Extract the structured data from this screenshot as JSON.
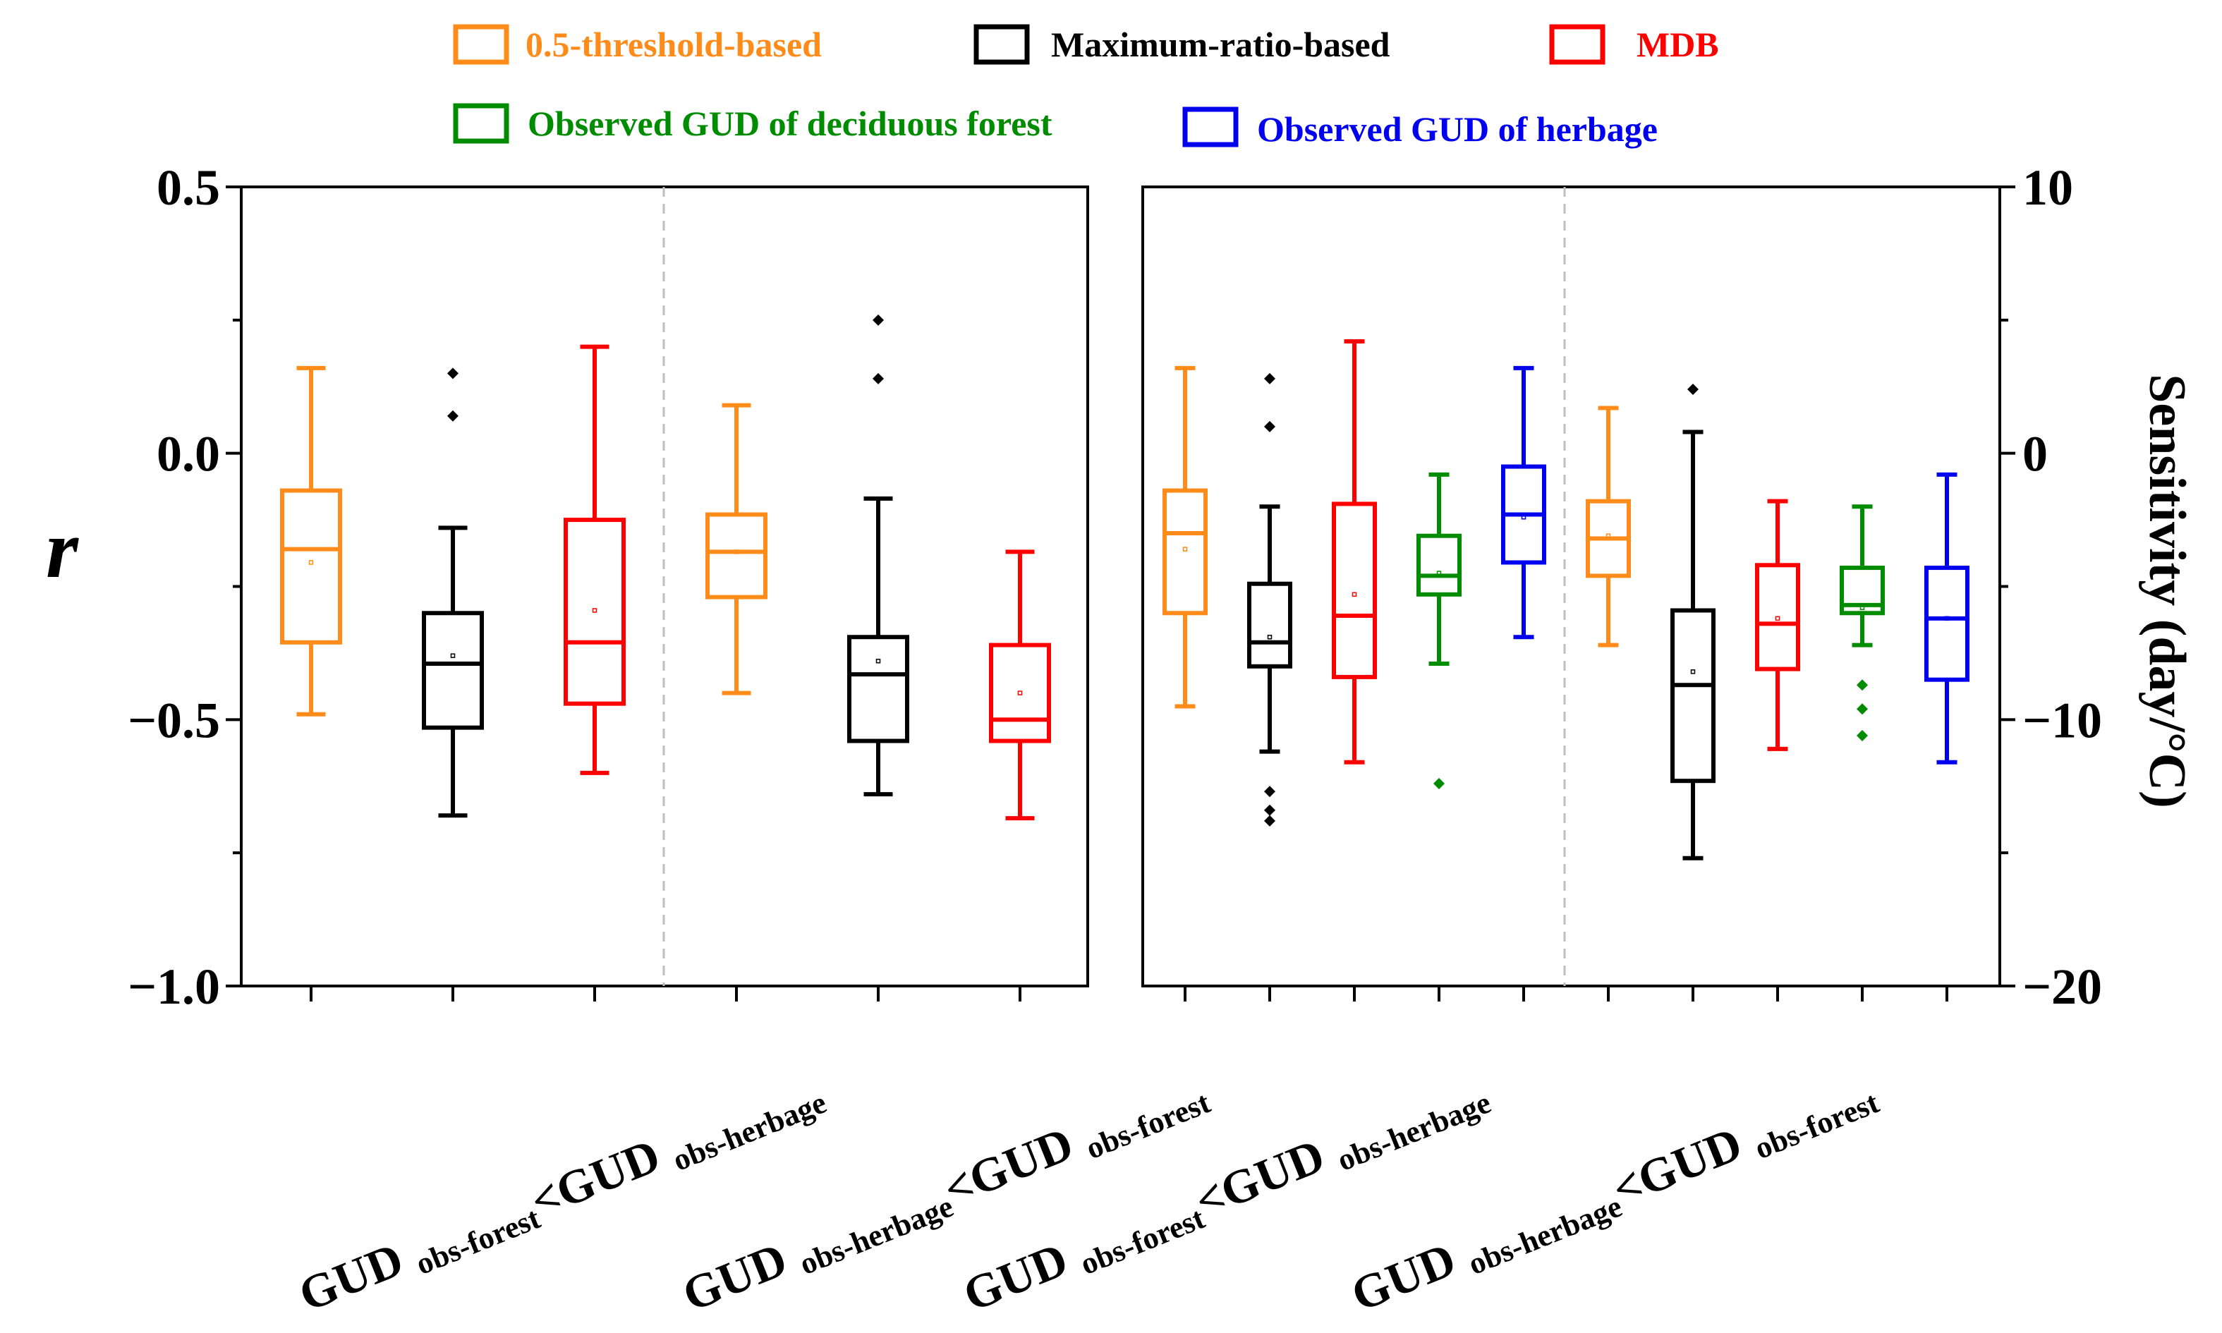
{
  "legend": [
    {
      "label": "0.5-threshold-based",
      "color": "#ff8c1a"
    },
    {
      "label": "Maximum-ratio-based",
      "color": "#000000"
    },
    {
      "label": "MDB",
      "color": "#ff0000"
    },
    {
      "label": "Observed GUD of deciduous forest",
      "color": "#008c00"
    },
    {
      "label": "Observed GUD of herbage",
      "color": "#0000ee"
    }
  ],
  "chart_data": [
    {
      "type": "box",
      "panel": "left",
      "ylabel": "r",
      "ylim": [
        -1.0,
        0.5
      ],
      "yticks": [
        "0.5",
        "0.0",
        "−0.5",
        "−1.0"
      ],
      "ytick_values": [
        0.5,
        0.0,
        -0.5,
        -1.0
      ],
      "groups": [
        {
          "main": "GUD",
          "sub1": "obs-forest",
          "mid": "<GUD",
          "sub2": "obs-herbage"
        },
        {
          "main": "GUD",
          "sub1": "obs-herbage",
          "mid": "<GUD",
          "sub2": "obs-forest"
        }
      ],
      "boxes": [
        {
          "group": 0,
          "series": "0.5-threshold-based",
          "color": "#ff8c1a",
          "whisker_low": -0.49,
          "q1": -0.355,
          "median": -0.18,
          "q3": -0.07,
          "whisker_high": 0.16,
          "mean": -0.205,
          "outliers": []
        },
        {
          "group": 0,
          "series": "Maximum-ratio-based",
          "color": "#000000",
          "whisker_low": -0.68,
          "q1": -0.515,
          "median": -0.395,
          "q3": -0.3,
          "whisker_high": -0.14,
          "mean": -0.38,
          "outliers": [
            0.15,
            0.07
          ]
        },
        {
          "group": 0,
          "series": "MDB",
          "color": "#ff0000",
          "whisker_low": -0.6,
          "q1": -0.47,
          "median": -0.355,
          "q3": -0.125,
          "whisker_high": 0.2,
          "mean": -0.295,
          "outliers": []
        },
        {
          "group": 1,
          "series": "0.5-threshold-based",
          "color": "#ff8c1a",
          "whisker_low": -0.45,
          "q1": -0.27,
          "median": -0.185,
          "q3": -0.115,
          "whisker_high": 0.09,
          "mean": -0.185,
          "outliers": []
        },
        {
          "group": 1,
          "series": "Maximum-ratio-based",
          "color": "#000000",
          "whisker_low": -0.64,
          "q1": -0.54,
          "median": -0.415,
          "q3": -0.345,
          "whisker_high": -0.085,
          "mean": -0.39,
          "outliers": [
            0.25,
            0.14
          ]
        },
        {
          "group": 1,
          "series": "MDB",
          "color": "#ff0000",
          "whisker_low": -0.685,
          "q1": -0.54,
          "median": -0.5,
          "q3": -0.36,
          "whisker_high": -0.185,
          "mean": -0.45,
          "outliers": []
        }
      ]
    },
    {
      "type": "box",
      "panel": "right",
      "ylabel": "Sensitivity (day/°C)",
      "ylim": [
        -20,
        10
      ],
      "yticks": [
        "10",
        "0",
        "−10",
        "−20"
      ],
      "ytick_values": [
        10,
        0,
        -10,
        -20
      ],
      "groups": [
        {
          "main": "GUD",
          "sub1": "obs-forest",
          "mid": "<GUD",
          "sub2": "obs-herbage"
        },
        {
          "main": "GUD",
          "sub1": "obs-herbage",
          "mid": "<GUD",
          "sub2": "obs-forest"
        }
      ],
      "boxes": [
        {
          "group": 0,
          "series": "0.5-threshold-based",
          "color": "#ff8c1a",
          "whisker_low": -9.5,
          "q1": -6.0,
          "median": -3.0,
          "q3": -1.4,
          "whisker_high": 3.2,
          "mean": -3.6,
          "outliers": []
        },
        {
          "group": 0,
          "series": "Maximum-ratio-based",
          "color": "#000000",
          "whisker_low": -11.2,
          "q1": -8.0,
          "median": -7.1,
          "q3": -4.9,
          "whisker_high": -2.0,
          "mean": -6.9,
          "outliers": [
            -12.7,
            -13.4,
            -13.8,
            2.8,
            1.0
          ]
        },
        {
          "group": 0,
          "series": "MDB",
          "color": "#ff0000",
          "whisker_low": -11.6,
          "q1": -8.4,
          "median": -6.1,
          "q3": -1.9,
          "whisker_high": 4.2,
          "mean": -5.3,
          "outliers": []
        },
        {
          "group": 0,
          "series": "Observed GUD of deciduous forest",
          "color": "#008c00",
          "whisker_low": -7.9,
          "q1": -5.3,
          "median": -4.6,
          "q3": -3.1,
          "whisker_high": -0.8,
          "mean": -4.5,
          "outliers": [
            -12.4
          ]
        },
        {
          "group": 0,
          "series": "Observed GUD of herbage",
          "color": "#0000ee",
          "whisker_low": -6.9,
          "q1": -4.1,
          "median": -2.3,
          "q3": -0.5,
          "whisker_high": 3.2,
          "mean": -2.4,
          "outliers": []
        },
        {
          "group": 1,
          "series": "0.5-threshold-based",
          "color": "#ff8c1a",
          "whisker_low": -7.2,
          "q1": -4.6,
          "median": -3.2,
          "q3": -1.8,
          "whisker_high": 1.7,
          "mean": -3.1,
          "outliers": []
        },
        {
          "group": 1,
          "series": "Maximum-ratio-based",
          "color": "#000000",
          "whisker_low": -15.2,
          "q1": -12.3,
          "median": -8.7,
          "q3": -5.9,
          "whisker_high": 0.8,
          "mean": -8.2,
          "outliers": [
            2.4
          ]
        },
        {
          "group": 1,
          "series": "MDB",
          "color": "#ff0000",
          "whisker_low": -11.1,
          "q1": -8.1,
          "median": -6.4,
          "q3": -4.2,
          "whisker_high": -1.8,
          "mean": -6.2,
          "outliers": []
        },
        {
          "group": 1,
          "series": "Observed GUD of deciduous forest",
          "color": "#008c00",
          "whisker_low": -7.2,
          "q1": -6.0,
          "median": -5.7,
          "q3": -4.3,
          "whisker_high": -2.0,
          "mean": -5.8,
          "outliers": [
            -8.7,
            -9.6,
            -10.6
          ]
        },
        {
          "group": 1,
          "series": "Observed GUD of herbage",
          "color": "#0000ee",
          "whisker_low": -11.6,
          "q1": -8.5,
          "median": -6.2,
          "q3": -4.3,
          "whisker_high": -0.8,
          "mean": -6.2,
          "outliers": []
        }
      ]
    }
  ]
}
